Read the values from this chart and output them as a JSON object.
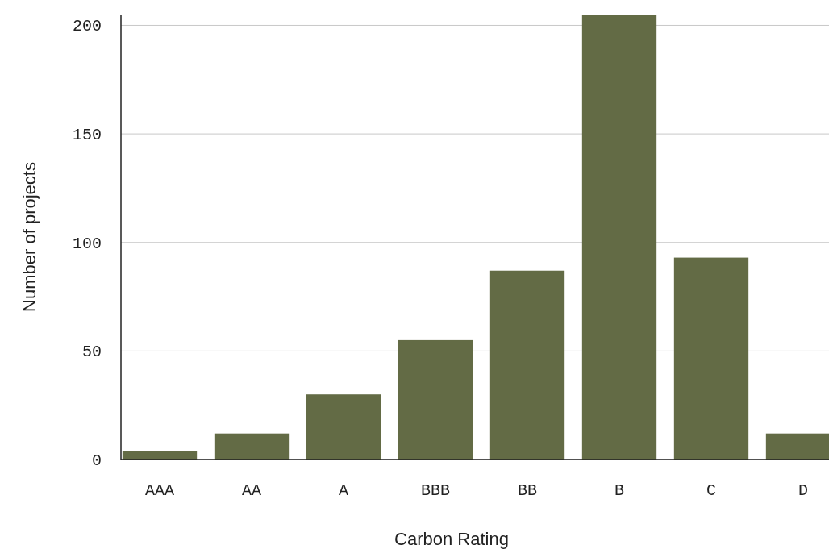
{
  "chart_data": {
    "type": "bar",
    "xlabel": "Carbon Rating",
    "ylabel": "Number of projects",
    "categories": [
      "AAA",
      "AA",
      "A",
      "BBB",
      "BB",
      "B",
      "C",
      "D"
    ],
    "values": [
      4,
      12,
      30,
      55,
      87,
      205,
      93,
      12
    ],
    "color": "#636b45",
    "ylim": [
      0,
      205
    ],
    "yticks": [
      0,
      50,
      100,
      150,
      200
    ],
    "grid": "y"
  }
}
